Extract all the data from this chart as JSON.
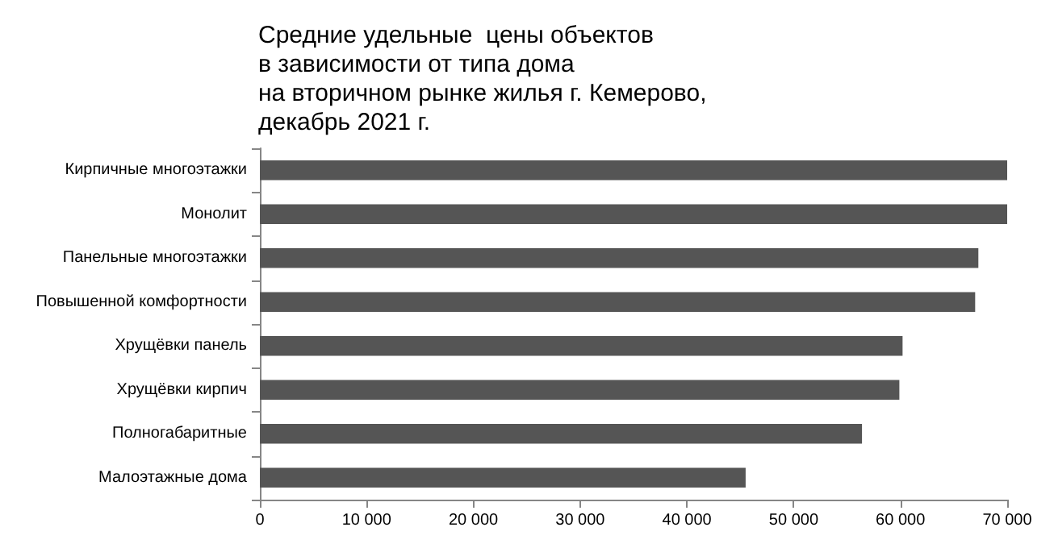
{
  "chart_data": {
    "type": "bar",
    "orientation": "horizontal",
    "title": "Средние удельные  цены объектов\nв зависимости от типа дома\nна вторичном рынке жилья г. Кемерово,\nдекабрь 2021 г.",
    "categories": [
      "Кирпичные многоэтажки",
      "Монолит",
      "Панельные многоэтажки",
      "Повышенной комфортности",
      "Хрущёвки панель",
      "Хрущёвки кирпич",
      "Полногабаритные",
      "Малоэтажные дома"
    ],
    "values": [
      70000,
      70000,
      67300,
      67000,
      60200,
      59900,
      56400,
      45500
    ],
    "color": "#555555",
    "xlim": [
      0,
      70000
    ],
    "xticks": [
      0,
      {
        "value": 10000,
        "label": "10 000"
      },
      {
        "value": 20000,
        "label": "20 000"
      },
      {
        "value": 30000,
        "label": "30 000"
      },
      {
        "value": 40000,
        "label": "40 000"
      },
      {
        "value": 50000,
        "label": "50 000"
      },
      {
        "value": 60000,
        "label": "60 000"
      },
      {
        "value": 70000,
        "label": "70 000"
      }
    ],
    "grid": false
  }
}
